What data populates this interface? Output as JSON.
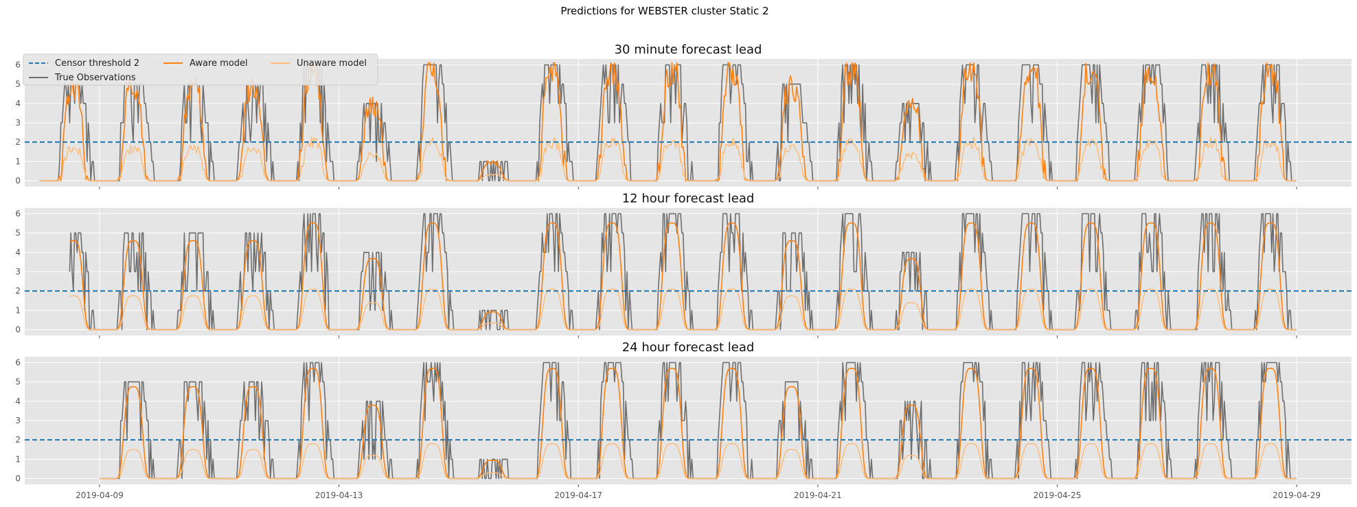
{
  "figure_title": "Predictions for WEBSTER cluster Static 2",
  "colors": {
    "background": "#E5E5E5",
    "grid": "#FFFFFF",
    "censor": "#1F77B4",
    "aware": "#FF7F0E",
    "unaware": "#FFBB78",
    "true_obs": "#6E6E6E",
    "tick_label": "#555555"
  },
  "legend": {
    "placement": "top-left",
    "entries": [
      {
        "key": "censor",
        "label": "Censor threshold 2",
        "style": "dashed"
      },
      {
        "key": "true_obs",
        "label": "True Observations",
        "style": "solid"
      },
      {
        "key": "aware",
        "label": "Aware model",
        "style": "solid"
      },
      {
        "key": "unaware",
        "label": "Unaware model",
        "style": "solid"
      }
    ]
  },
  "chart_data": [
    {
      "type": "line",
      "title": "30 minute forecast lead",
      "xlabel": "",
      "ylabel": "",
      "x_type": "datetime",
      "xlim": [
        "2019-04-07T18:00",
        "2019-04-29T22:00"
      ],
      "ylim": [
        -0.3,
        6.3
      ],
      "yticks": [
        0,
        1,
        2,
        3,
        4,
        5,
        6
      ],
      "xticks": [
        "2019-04-09",
        "2019-04-13",
        "2019-04-17",
        "2019-04-21",
        "2019-04-25",
        "2019-04-29"
      ],
      "show_xtick_labels": false,
      "grid": true,
      "censor_threshold": 2,
      "start": "2019-04-08T00:00",
      "end": "2019-04-29T00:00",
      "day_peaks_observed": [
        5,
        5,
        5,
        5,
        6,
        4,
        6,
        1,
        6,
        6,
        6,
        6,
        5,
        6,
        4,
        6,
        6,
        6,
        6,
        6,
        6,
        5
      ],
      "series": [
        {
          "name": "True Observations",
          "key": "true_obs",
          "peak_scale": 1.0,
          "noise": 0.5
        },
        {
          "name": "Aware model",
          "key": "aware",
          "peak_scale": 0.95,
          "noise": 0.55
        },
        {
          "name": "Unaware model",
          "key": "unaware",
          "peak_scale": 0.33,
          "noise": 0.2
        }
      ]
    },
    {
      "type": "line",
      "title": "12  hour forecast lead",
      "xlabel": "",
      "ylabel": "",
      "x_type": "datetime",
      "xlim": [
        "2019-04-07T18:00",
        "2019-04-29T22:00"
      ],
      "ylim": [
        -0.3,
        6.3
      ],
      "yticks": [
        0,
        1,
        2,
        3,
        4,
        5,
        6
      ],
      "xticks": [
        "2019-04-09",
        "2019-04-13",
        "2019-04-17",
        "2019-04-21",
        "2019-04-25",
        "2019-04-29"
      ],
      "show_xtick_labels": false,
      "grid": true,
      "censor_threshold": 2,
      "start": "2019-04-08T12:00",
      "end": "2019-04-29T00:00",
      "day_peaks_observed": [
        5,
        5,
        5,
        5,
        6,
        4,
        6,
        1,
        6,
        6,
        6,
        6,
        5,
        6,
        4,
        6,
        6,
        6,
        6,
        6,
        6,
        5
      ],
      "series": [
        {
          "name": "True Observations",
          "key": "true_obs",
          "peak_scale": 1.0,
          "noise": 0.5
        },
        {
          "name": "Aware model",
          "key": "aware",
          "peak_scale": 0.92,
          "noise": 0.0
        },
        {
          "name": "Unaware model",
          "key": "unaware",
          "peak_scale": 0.35,
          "noise": 0.0
        }
      ]
    },
    {
      "type": "line",
      "title": "24 hour forecast lead",
      "xlabel": "",
      "ylabel": "",
      "x_type": "datetime",
      "xlim": [
        "2019-04-07T18:00",
        "2019-04-29T22:00"
      ],
      "ylim": [
        -0.3,
        6.3
      ],
      "yticks": [
        0,
        1,
        2,
        3,
        4,
        5,
        6
      ],
      "xticks": [
        "2019-04-09",
        "2019-04-13",
        "2019-04-17",
        "2019-04-21",
        "2019-04-25",
        "2019-04-29"
      ],
      "show_xtick_labels": true,
      "grid": true,
      "censor_threshold": 2,
      "start": "2019-04-09T00:00",
      "end": "2019-04-29T00:00",
      "day_peaks_observed": [
        5,
        5,
        5,
        5,
        6,
        4,
        6,
        1,
        6,
        6,
        6,
        6,
        5,
        6,
        4,
        6,
        6,
        6,
        6,
        6,
        6,
        5
      ],
      "series": [
        {
          "name": "True Observations",
          "key": "true_obs",
          "peak_scale": 1.0,
          "noise": 0.5
        },
        {
          "name": "Aware model",
          "key": "aware",
          "peak_scale": 0.95,
          "noise": 0.0
        },
        {
          "name": "Unaware model",
          "key": "unaware",
          "peak_scale": 0.3,
          "noise": 0.0
        }
      ]
    }
  ]
}
